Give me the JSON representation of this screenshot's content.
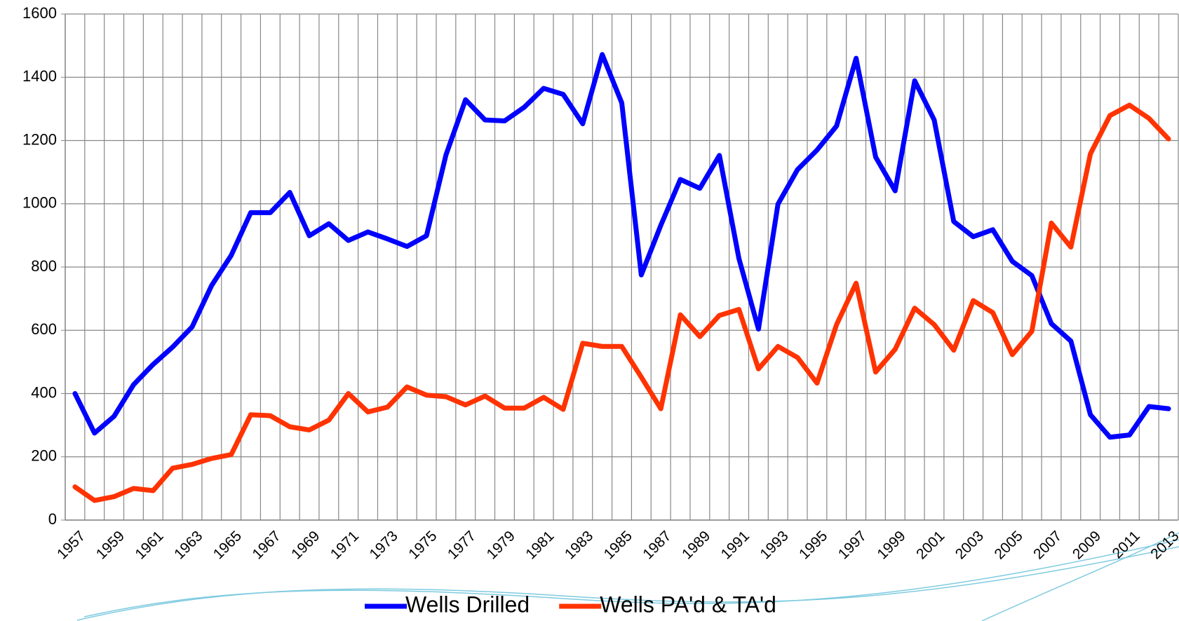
{
  "chart_data": {
    "type": "line",
    "categories": [
      "1957",
      null,
      "1959",
      null,
      "1961",
      null,
      "1963",
      null,
      "1965",
      null,
      "1967",
      null,
      "1969",
      null,
      "1971",
      null,
      "1973",
      null,
      "1975",
      null,
      "1977",
      null,
      "1979",
      null,
      "1981",
      null,
      "1983",
      null,
      "1985",
      null,
      "1987",
      null,
      "1989",
      null,
      "1991",
      null,
      "1993",
      null,
      "1995",
      null,
      "1997",
      null,
      "1999",
      null,
      "2001",
      null,
      "2003",
      null,
      "2005",
      null,
      "2007",
      null,
      "2009",
      null,
      "2011",
      null,
      "2013"
    ],
    "series": [
      {
        "name": "Wells Drilled",
        "color": "#0000ff",
        "values": [
          400,
          275,
          328,
          428,
          492,
          547,
          611,
          742,
          837,
          972,
          972,
          1036,
          899,
          937,
          884,
          911,
          889,
          865,
          899,
          1155,
          1329,
          1265,
          1262,
          1305,
          1365,
          1346,
          1253,
          1472,
          1319,
          775,
          932,
          1077,
          1049,
          1153,
          827,
          604,
          999,
          1108,
          1170,
          1246,
          1460,
          1148,
          1041,
          1389,
          1265,
          944,
          896,
          918,
          818,
          773,
          621,
          566,
          333,
          262,
          269,
          359,
          352
        ]
      },
      {
        "name": "Wells PA'd & TA'd",
        "color": "#ff3300",
        "values": [
          105,
          62,
          74,
          100,
          93,
          164,
          176,
          195,
          207,
          333,
          330,
          295,
          285,
          316,
          400,
          342,
          357,
          421,
          395,
          390,
          364,
          392,
          354,
          354,
          388,
          350,
          559,
          549,
          549,
          452,
          352,
          649,
          580,
          647,
          666,
          478,
          549,
          514,
          433,
          618,
          749,
          468,
          540,
          670,
          618,
          537,
          694,
          656,
          523,
          597,
          939,
          863,
          1158,
          1279,
          1312,
          1270,
          1205
        ]
      }
    ],
    "ylim": [
      0,
      1600
    ],
    "yticks": [
      0,
      200,
      400,
      600,
      800,
      1000,
      1200,
      1400,
      1600
    ],
    "grid": true,
    "legend": "bottom"
  }
}
